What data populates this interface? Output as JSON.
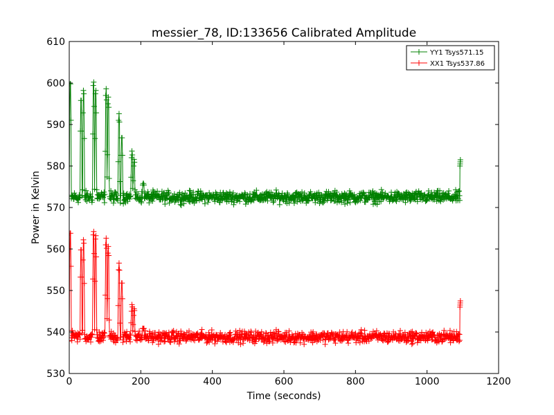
{
  "chart_data": {
    "type": "line",
    "title": "messier_78, ID:133656 Calibrated Amplitude",
    "xlabel": "Time (seconds)",
    "ylabel": "Power in Kelvin",
    "xlim": [
      0,
      1200
    ],
    "ylim": [
      530,
      610
    ],
    "xticks": [
      0,
      200,
      400,
      600,
      800,
      1000,
      1200
    ],
    "yticks": [
      530,
      540,
      550,
      560,
      570,
      580,
      590,
      600,
      610
    ],
    "grid": false,
    "legend_position": "top-right",
    "marker": "+",
    "series": [
      {
        "name": "YY1 Tsys571.15",
        "color": "#008000",
        "baseline": 572.5,
        "noise": 1.4,
        "x_range": [
          0,
          1092
        ],
        "spikes": [
          {
            "x": 3,
            "peak": 601
          },
          {
            "x": 33,
            "peak": 597
          },
          {
            "x": 40,
            "peak": 599
          },
          {
            "x": 68,
            "peak": 601
          },
          {
            "x": 74,
            "peak": 599
          },
          {
            "x": 103,
            "peak": 599
          },
          {
            "x": 109,
            "peak": 597
          },
          {
            "x": 139,
            "peak": 593
          },
          {
            "x": 147,
            "peak": 588
          },
          {
            "x": 175,
            "peak": 584
          },
          {
            "x": 181,
            "peak": 582
          },
          {
            "x": 207,
            "peak": 577
          }
        ],
        "end_jump": {
          "x": 1092,
          "peak": 581
        }
      },
      {
        "name": "XX1 Tsys537.86",
        "color": "#ff0000",
        "baseline": 538.8,
        "noise": 1.4,
        "x_range": [
          0,
          1092
        ],
        "spikes": [
          {
            "x": 3,
            "peak": 565
          },
          {
            "x": 33,
            "peak": 561
          },
          {
            "x": 40,
            "peak": 563
          },
          {
            "x": 68,
            "peak": 565
          },
          {
            "x": 74,
            "peak": 564
          },
          {
            "x": 103,
            "peak": 563
          },
          {
            "x": 109,
            "peak": 561
          },
          {
            "x": 139,
            "peak": 557
          },
          {
            "x": 147,
            "peak": 553
          },
          {
            "x": 175,
            "peak": 547
          },
          {
            "x": 181,
            "peak": 546
          },
          {
            "x": 207,
            "peak": 542
          }
        ],
        "end_jump": {
          "x": 1092,
          "peak": 547
        }
      }
    ]
  }
}
